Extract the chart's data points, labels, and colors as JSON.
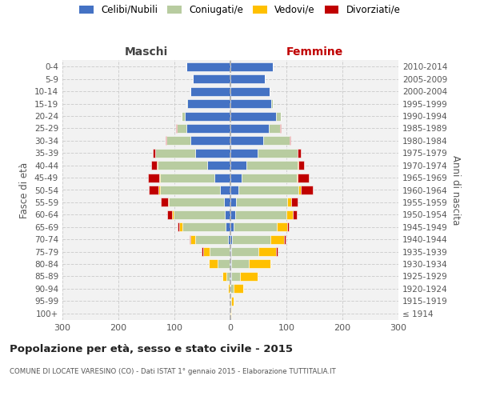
{
  "age_groups": [
    "100+",
    "95-99",
    "90-94",
    "85-89",
    "80-84",
    "75-79",
    "70-74",
    "65-69",
    "60-64",
    "55-59",
    "50-54",
    "45-49",
    "40-44",
    "35-39",
    "30-34",
    "25-29",
    "20-24",
    "15-19",
    "10-14",
    "5-9",
    "0-4"
  ],
  "birth_years": [
    "≤ 1914",
    "1915-1919",
    "1920-1924",
    "1925-1929",
    "1930-1934",
    "1935-1939",
    "1940-1944",
    "1945-1949",
    "1950-1954",
    "1955-1959",
    "1960-1964",
    "1965-1969",
    "1970-1974",
    "1975-1979",
    "1980-1984",
    "1985-1989",
    "1990-1994",
    "1995-1999",
    "2000-2004",
    "2005-2009",
    "2010-2014"
  ],
  "maschi_celibi": [
    0,
    0,
    0,
    1,
    1,
    2,
    5,
    8,
    10,
    12,
    18,
    28,
    42,
    63,
    72,
    78,
    82,
    77,
    72,
    67,
    78
  ],
  "maschi_coniugati": [
    0,
    0,
    2,
    6,
    22,
    35,
    58,
    78,
    92,
    98,
    108,
    98,
    88,
    72,
    42,
    18,
    5,
    2,
    0,
    0,
    0
  ],
  "maschi_vedovi": [
    0,
    0,
    2,
    8,
    15,
    12,
    8,
    5,
    3,
    2,
    2,
    1,
    1,
    0,
    0,
    0,
    0,
    0,
    0,
    0,
    0
  ],
  "maschi_divorziati": [
    0,
    0,
    0,
    0,
    1,
    2,
    2,
    4,
    8,
    12,
    18,
    20,
    10,
    3,
    2,
    1,
    0,
    0,
    0,
    0,
    0
  ],
  "femmine_nubili": [
    0,
    0,
    0,
    1,
    1,
    2,
    3,
    5,
    8,
    10,
    14,
    20,
    28,
    48,
    58,
    68,
    82,
    73,
    70,
    62,
    75
  ],
  "femmine_coniugate": [
    0,
    2,
    5,
    16,
    32,
    48,
    68,
    78,
    92,
    92,
    108,
    98,
    92,
    72,
    47,
    20,
    8,
    2,
    0,
    0,
    0
  ],
  "femmine_vedove": [
    1,
    3,
    18,
    32,
    38,
    32,
    25,
    18,
    12,
    6,
    3,
    2,
    1,
    0,
    0,
    0,
    0,
    0,
    0,
    0,
    0
  ],
  "femmine_divorziate": [
    0,
    0,
    0,
    0,
    1,
    2,
    2,
    3,
    6,
    12,
    22,
    20,
    10,
    5,
    2,
    2,
    0,
    0,
    0,
    0,
    0
  ],
  "color_celibi": "#4472c4",
  "color_coniugati": "#b8cca0",
  "color_vedovi": "#ffc000",
  "color_divorziati": "#c00000",
  "xlim": 300,
  "xticks": [
    -300,
    -200,
    -100,
    0,
    100,
    200,
    300
  ],
  "title": "Popolazione per età, sesso e stato civile - 2015",
  "subtitle": "COMUNE DI LOCATE VARESINO (CO) - Dati ISTAT 1° gennaio 2015 - Elaborazione TUTTITALIA.IT",
  "ylabel_left": "Fasce di età",
  "ylabel_right": "Anni di nascita",
  "label_maschi": "Maschi",
  "label_femmine": "Femmine",
  "legend_labels": [
    "Celibi/Nubili",
    "Coniugati/e",
    "Vedovi/e",
    "Divorziati/e"
  ],
  "bg_color": "#f2f2f2",
  "grid_color": "#cccccc"
}
